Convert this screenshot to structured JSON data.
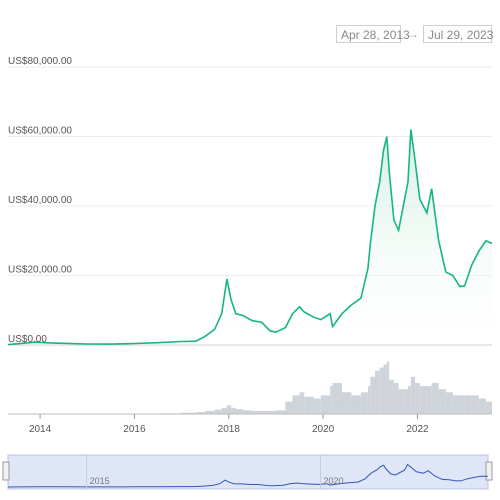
{
  "date_range": {
    "from": "Apr 28, 2013",
    "arrow": "→",
    "to": "Jul 29, 2023"
  },
  "colors": {
    "line": "#16b584",
    "fill_top": "#cfeedd",
    "volume": "#cfd3da",
    "navigator_bg": "#dfe6f7",
    "navigator_line": "#3355bb",
    "grid": "#eeeeee"
  },
  "chart_data": {
    "type": "line",
    "title": "",
    "xlabel": "",
    "ylabel": "",
    "x_ticks": [
      "2014",
      "2016",
      "2018",
      "2020",
      "2022"
    ],
    "y_ticks": [
      "US$0.00",
      "US$20,000.00",
      "US$40,000.00",
      "US$60,000.00",
      "US$80,000.00"
    ],
    "ylim": [
      0,
      80000
    ],
    "xlim": [
      2013.32,
      2023.58
    ],
    "grid": true,
    "series": [
      {
        "values_note": "",
        "x": [
          2013.32,
          2013.9,
          2014.2,
          2014.5,
          2015.0,
          2015.5,
          2016.0,
          2016.5,
          2017.0,
          2017.3,
          2017.5,
          2017.7,
          2017.85,
          2017.96,
          2018.05,
          2018.15,
          2018.3,
          2018.5,
          2018.7,
          2018.88,
          2019.0,
          2019.2,
          2019.35,
          2019.5,
          2019.6,
          2019.8,
          2019.95,
          2020.15,
          2020.2,
          2020.4,
          2020.6,
          2020.8,
          2020.95,
          2021.0,
          2021.1,
          2021.2,
          2021.28,
          2021.35,
          2021.4,
          2021.5,
          2021.6,
          2021.7,
          2021.8,
          2021.86,
          2021.95,
          2022.05,
          2022.2,
          2022.3,
          2022.45,
          2022.6,
          2022.75,
          2022.9,
          2023.0,
          2023.15,
          2023.3,
          2023.45,
          2023.58
        ],
        "values": [
          120,
          800,
          600,
          500,
          300,
          250,
          430,
          650,
          1000,
          1100,
          2500,
          4500,
          9000,
          19000,
          13000,
          9000,
          8500,
          7000,
          6500,
          4000,
          3700,
          5000,
          9000,
          11000,
          9500,
          8000,
          7300,
          9000,
          5300,
          9000,
          11500,
          13500,
          22000,
          29000,
          40000,
          47000,
          56000,
          60000,
          50000,
          36000,
          33000,
          40000,
          47000,
          62000,
          53000,
          42000,
          38000,
          45000,
          30000,
          21000,
          20000,
          16800,
          17000,
          23000,
          27000,
          30000,
          29200
        ],
        "volume": [
          0.002,
          0.004,
          0.004,
          0.003,
          0.003,
          0.004,
          0.006,
          0.01,
          0.02,
          0.03,
          0.05,
          0.07,
          0.1,
          0.14,
          0.1,
          0.08,
          0.06,
          0.05,
          0.05,
          0.05,
          0.06,
          0.2,
          0.3,
          0.35,
          0.28,
          0.25,
          0.3,
          0.45,
          0.5,
          0.35,
          0.3,
          0.35,
          0.45,
          0.6,
          0.7,
          0.75,
          0.8,
          0.85,
          0.55,
          0.5,
          0.4,
          0.4,
          0.45,
          0.6,
          0.5,
          0.45,
          0.45,
          0.5,
          0.4,
          0.35,
          0.3,
          0.3,
          0.3,
          0.3,
          0.25,
          0.2,
          0.1
        ]
      }
    ],
    "navigator_ticks": [
      "2015",
      "2020"
    ]
  }
}
